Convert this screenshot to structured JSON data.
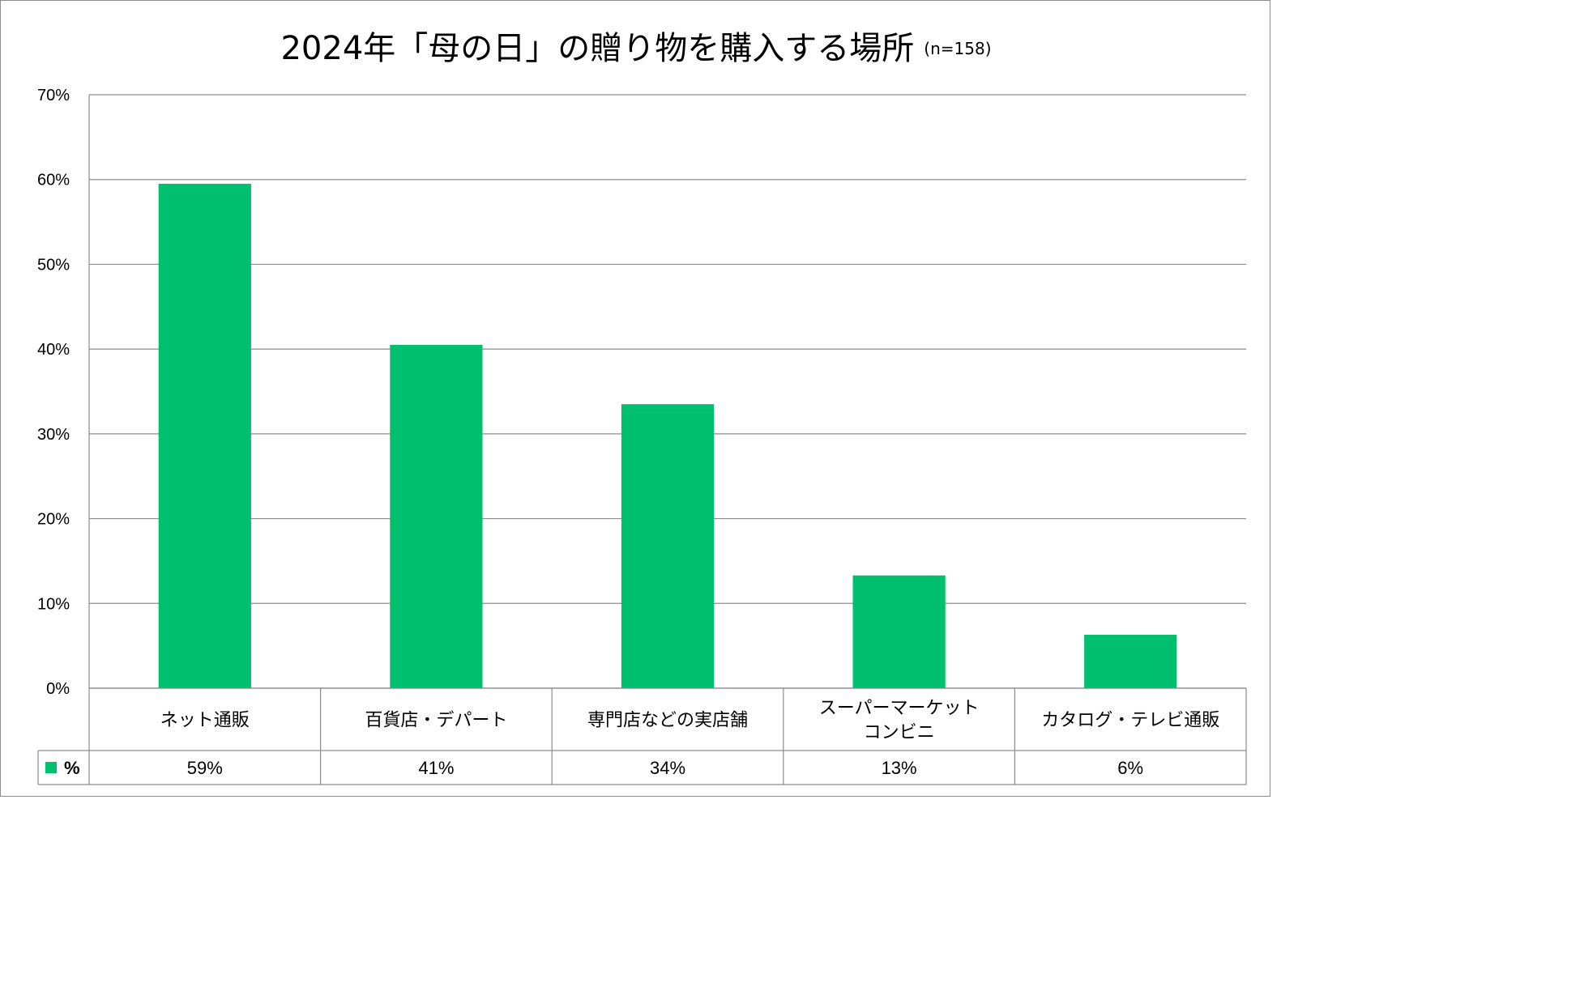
{
  "chart_data": {
    "type": "bar",
    "title": "2024年「母の日」の贈り物を購入する場所",
    "subtitle": "(n=158)",
    "categories": [
      [
        "ネット通販"
      ],
      [
        "百貨店・デパート"
      ],
      [
        "専門店などの実店舗"
      ],
      [
        "スーパーマーケット",
        "コンビニ"
      ],
      [
        "カタログ・テレビ通販"
      ]
    ],
    "series": [
      {
        "name": "%",
        "values": [
          59.5,
          40.5,
          33.5,
          13.3,
          6.3
        ],
        "labels": [
          "59%",
          "41%",
          "34%",
          "13%",
          "6%"
        ],
        "color": "#00bf6f"
      }
    ],
    "ylim": [
      0,
      70
    ],
    "yticks": [
      "0%",
      "10%",
      "20%",
      "30%",
      "40%",
      "50%",
      "60%",
      "70%"
    ],
    "grid": true,
    "legend": "data-table-left"
  }
}
